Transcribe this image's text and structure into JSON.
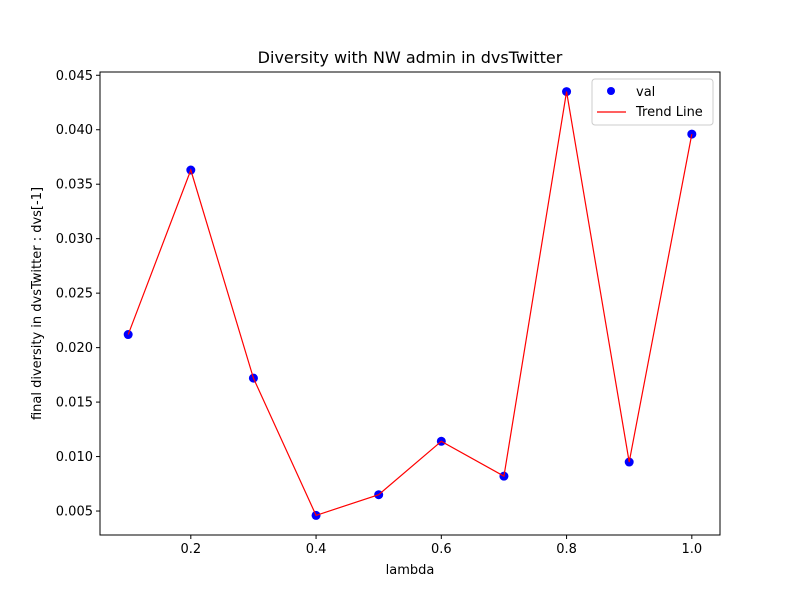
{
  "chart_data": {
    "type": "line",
    "title": "Diversity with NW admin in dvsTwitter",
    "xlabel": "lambda",
    "ylabel": "final diversity in dvsTwitter : dvs[-1]",
    "x": [
      0.1,
      0.2,
      0.3,
      0.4,
      0.5,
      0.6,
      0.7,
      0.8,
      0.9,
      1.0
    ],
    "series": [
      {
        "name": "val",
        "kind": "scatter",
        "color": "#0000ff",
        "values": [
          0.0212,
          0.0363,
          0.0172,
          0.0046,
          0.0065,
          0.0114,
          0.0082,
          0.0435,
          0.0095,
          0.0396
        ]
      },
      {
        "name": "Trend Line",
        "kind": "line",
        "color": "#ff0000",
        "values": [
          0.0212,
          0.0363,
          0.0172,
          0.0046,
          0.0065,
          0.0114,
          0.0082,
          0.0435,
          0.0095,
          0.0396
        ]
      }
    ],
    "xlim": [
      0.055,
      1.045
    ],
    "ylim": [
      0.0028,
      0.0453
    ],
    "xticks": [
      "0.2",
      "0.4",
      "0.6",
      "0.8",
      "1.0"
    ],
    "yticks": [
      "0.005",
      "0.010",
      "0.015",
      "0.020",
      "0.025",
      "0.030",
      "0.035",
      "0.040",
      "0.045"
    ],
    "legend_position": "top-right",
    "grid": false
  }
}
